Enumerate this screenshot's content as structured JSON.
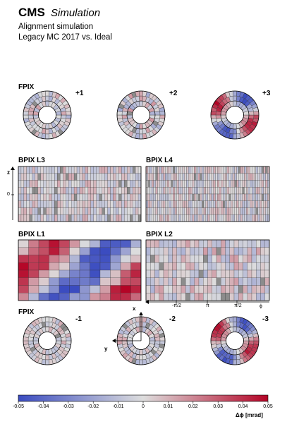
{
  "header": {
    "experiment": "CMS",
    "qualifier": "Simulation",
    "line1": "Alignment simulation",
    "line2": "Legacy MC 2017 vs. Ideal"
  },
  "panels": {
    "fpix_top_label": "FPIX",
    "fpix_bottom_label": "FPIX",
    "bpix_l3": "BPIX L3",
    "bpix_l4": "BPIX L4",
    "bpix_l1": "BPIX L1",
    "bpix_l2": "BPIX L2",
    "disk_plus": [
      "+1",
      "+2",
      "+3"
    ],
    "disk_minus": [
      "-1",
      "-2",
      "-3"
    ]
  },
  "axes": {
    "z_label": "z",
    "z_zero": "0",
    "phi_label": "ϕ",
    "phi_ticks": [
      "-π/2",
      "π",
      "π/2"
    ],
    "local_x": "x",
    "local_y": "y"
  },
  "colorbar": {
    "ticks": [
      "-0.05",
      "-0.04",
      "-0.03",
      "-0.02",
      "-0.01",
      "0",
      "0.01",
      "0.02",
      "0.03",
      "0.04",
      "0.05"
    ],
    "label": "Δϕ [mrad]",
    "range": [
      -0.05,
      0.05
    ],
    "colors": [
      "#3b4cc0",
      "#dddddd",
      "#b40426"
    ],
    "missing_color": "#8c8c8c"
  }
}
